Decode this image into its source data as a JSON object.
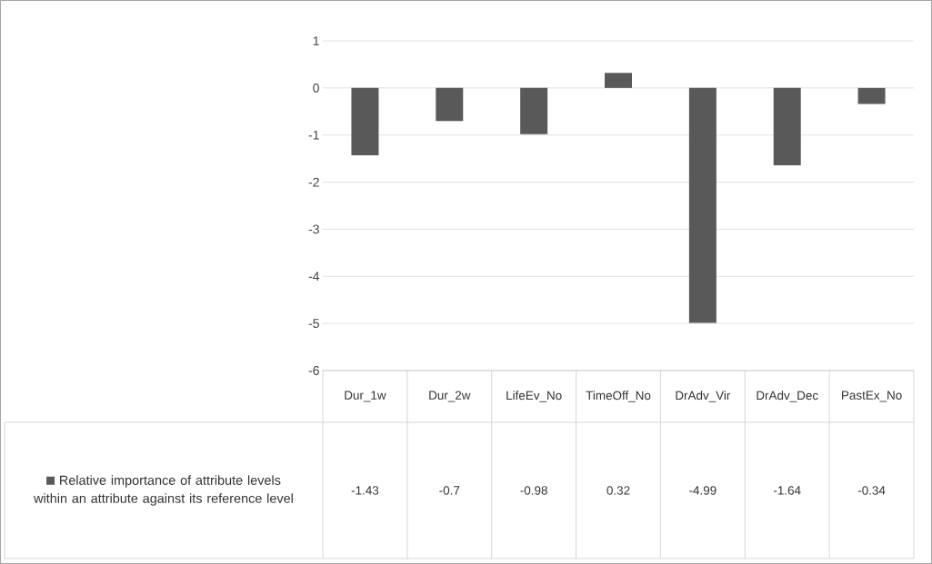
{
  "chart_data": {
    "type": "bar",
    "categories": [
      "Dur_1w",
      "Dur_2w",
      "LifeEv_No",
      "TimeOff_No",
      "DrAdv_Vir",
      "DrAdv_Dec",
      "PastEx_No"
    ],
    "series": [
      {
        "name": "Relative importance of attribute levels within an attribute against its reference level",
        "color": "#595959",
        "values": [
          -1.43,
          -0.7,
          -0.98,
          0.32,
          -4.99,
          -1.64,
          -0.34
        ]
      }
    ],
    "ylim": [
      -6,
      1
    ],
    "yticks": [
      -6,
      -5,
      -4,
      -3,
      -2,
      -1,
      0,
      1
    ],
    "grid": "y",
    "data_labels": true,
    "legend": "bottom"
  }
}
